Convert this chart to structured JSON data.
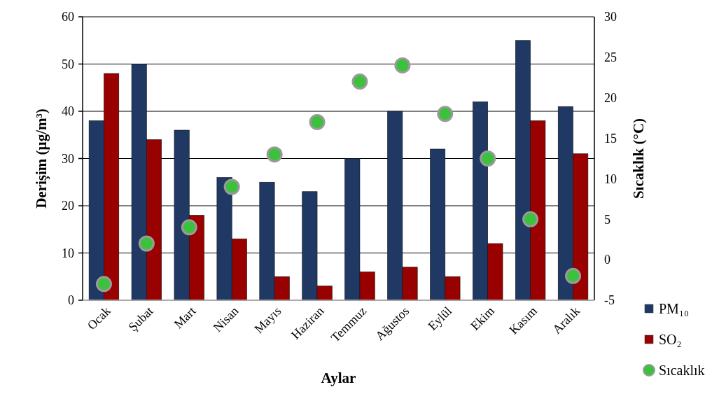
{
  "chart_data": {
    "type": "bar",
    "xlabel": "Aylar",
    "ylabel": "Derişim (µg/m³)",
    "y2label": "Sıcaklık (°C)",
    "categories": [
      "Ocak",
      "Şubat",
      "Mart",
      "Nisan",
      "Mayıs",
      "Haziran",
      "Temmuz",
      "Ağustos",
      "Eylül",
      "Ekim",
      "Kasım",
      "Aralık"
    ],
    "series": [
      {
        "name": "PM₁₀",
        "color": "#1f3864",
        "values": [
          38,
          50,
          36,
          26,
          25,
          23,
          30,
          40,
          32,
          42,
          55,
          41
        ]
      },
      {
        "name": "SO₂",
        "color": "#990000",
        "values": [
          48,
          34,
          18,
          13,
          5,
          3,
          6,
          7,
          5,
          12,
          38,
          31
        ]
      },
      {
        "name": "Sıcaklık",
        "type": "scatter",
        "axis": "y2",
        "color": "#3cc13c",
        "marker": "circle",
        "values": [
          -3,
          2,
          4,
          9,
          13,
          17,
          22,
          24,
          18,
          12.5,
          5,
          -2
        ]
      }
    ],
    "ylim": [
      0,
      60
    ],
    "yticks": [
      0,
      10,
      20,
      30,
      40,
      50,
      60
    ],
    "y2lim": [
      -5,
      30
    ],
    "y2ticks": [
      -5,
      0,
      5,
      10,
      15,
      20,
      25,
      30
    ],
    "grid": "y",
    "legend": "bottom right"
  }
}
